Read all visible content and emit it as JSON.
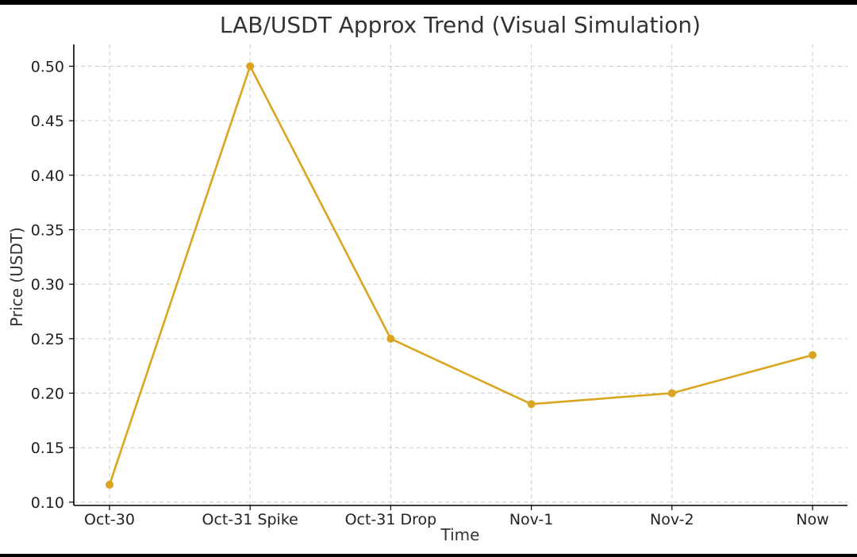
{
  "chart_data": {
    "type": "line",
    "title": "LAB/USDT Approx Trend (Visual Simulation)",
    "xlabel": "Time",
    "ylabel": "Price (USDT)",
    "categories": [
      "Oct-30",
      "Oct-31 Spike",
      "Oct-31 Drop",
      "Nov-1",
      "Nov-2",
      "Now"
    ],
    "series": [
      {
        "values": [
          0.116,
          0.5,
          0.25,
          0.19,
          0.2,
          0.235
        ],
        "color": "#DAA520"
      }
    ],
    "yticks": [
      "0.10",
      "0.15",
      "0.20",
      "0.25",
      "0.30",
      "0.35",
      "0.40",
      "0.45",
      "0.50"
    ],
    "ylim": [
      0.097,
      0.52
    ],
    "grid": true,
    "grid_style": "dashed",
    "legend": "none"
  }
}
